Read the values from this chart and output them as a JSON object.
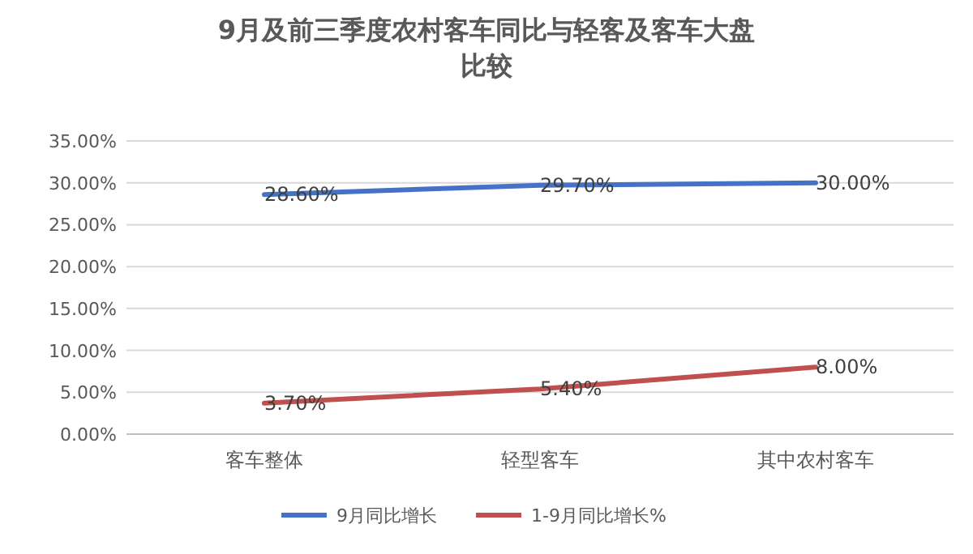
{
  "chart_data": {
    "type": "line",
    "title": "9月及前三季度农村客车同比与轻客及客车大盘比较",
    "categories": [
      "客车整体",
      "轻型客车",
      "其中农村客车"
    ],
    "series": [
      {
        "name": "9月同比增长",
        "color": "#4472c4",
        "values": [
          28.6,
          29.7,
          30.0
        ],
        "value_labels": [
          "28.60%",
          "29.70%",
          "30.00%"
        ]
      },
      {
        "name": "1-9月同比增长%",
        "color": "#c0504d",
        "values": [
          3.7,
          5.4,
          8.0
        ],
        "value_labels": [
          "3.70%",
          "5.40%",
          "8.00%"
        ]
      }
    ],
    "ylim": [
      0,
      35
    ],
    "yticks": [
      {
        "value": 0,
        "label": "0.00%"
      },
      {
        "value": 5,
        "label": "5.00%"
      },
      {
        "value": 10,
        "label": "10.00%"
      },
      {
        "value": 15,
        "label": "15.00%"
      },
      {
        "value": 20,
        "label": "20.00%"
      },
      {
        "value": 25,
        "label": "25.00%"
      },
      {
        "value": 30,
        "label": "30.00%"
      },
      {
        "value": 35,
        "label": "35.00%"
      }
    ],
    "grid": "y",
    "legend": "bottom",
    "marker": "none",
    "line_style": "solid"
  }
}
